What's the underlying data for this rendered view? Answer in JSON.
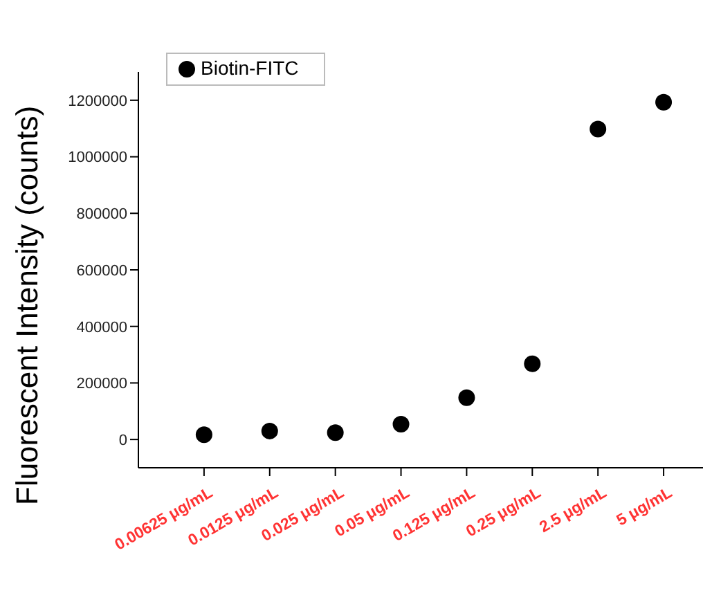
{
  "chart_data": {
    "type": "scatter",
    "ylabel": "Fluorescent Intensity (counts)",
    "categories": [
      "0.00625 μg/mL",
      "0.0125 μg/mL",
      "0.025 μg/mL",
      "0.05 μg/mL",
      "0.125 μg/mL",
      "0.25 μg/mL",
      "2.5 μg/mL",
      "5 μg/mL"
    ],
    "series": [
      {
        "name": "Biotin-FITC",
        "color": "#000000",
        "values": [
          17000,
          30000,
          24000,
          54000,
          148000,
          268000,
          1098000,
          1193000
        ]
      }
    ],
    "ylim": [
      -100000,
      1300000
    ],
    "yticks": [
      0,
      200000,
      400000,
      600000,
      800000,
      1000000,
      1200000
    ],
    "marker": "circle",
    "grid": false,
    "legend": "top left"
  }
}
